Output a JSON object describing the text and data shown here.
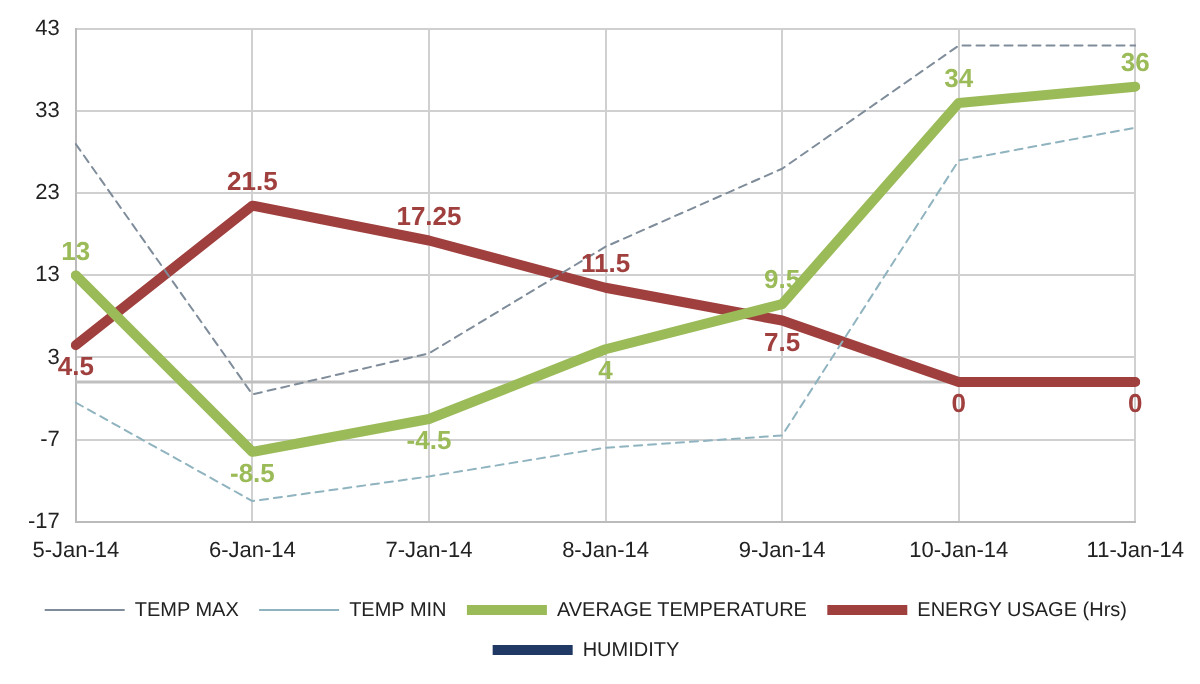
{
  "chart_data": {
    "type": "line",
    "categories": [
      "5-Jan-14",
      "6-Jan-14",
      "7-Jan-14",
      "8-Jan-14",
      "9-Jan-14",
      "10-Jan-14",
      "11-Jan-14"
    ],
    "ylim": [
      -17,
      43
    ],
    "yticks": [
      -17,
      -7,
      3,
      13,
      23,
      33,
      43
    ],
    "grid": true,
    "legend": "bottom",
    "marker": "none",
    "ref_lines": [
      {
        "axis": "y",
        "value": 0,
        "color": "#bfbfbf"
      }
    ],
    "series": [
      {
        "name": "TEMP MAX",
        "color": "#7f8c9a",
        "line_style": "dashed",
        "values": [
          29,
          -1.5,
          3.5,
          16.5,
          26,
          41,
          41
        ]
      },
      {
        "name": "TEMP MIN",
        "color": "#8fb3bf",
        "line_style": "dashed",
        "values": [
          -2.5,
          -14.5,
          -11.5,
          -8,
          -6.5,
          27,
          31
        ]
      },
      {
        "name": "AVERAGE TEMPERATURE",
        "color": "#9bbb59",
        "line_style": "solid",
        "values": [
          13,
          -8.5,
          -4.5,
          4,
          9.5,
          34,
          36
        ],
        "value_labels": [
          "13",
          "-8.5",
          "-4.5",
          "4",
          "9.5",
          "34",
          "36"
        ]
      },
      {
        "name": "ENERGY USAGE (Hrs)",
        "color": "#a0403e",
        "line_style": "solid",
        "values": [
          4.5,
          21.5,
          17.25,
          11.5,
          7.5,
          0,
          0
        ],
        "value_labels": [
          "4.5",
          "21.5",
          "17.25",
          "11.5",
          "7.5",
          "0",
          "0"
        ]
      },
      {
        "name": "HUMIDITY",
        "color": "#1f3864",
        "line_style": "solid",
        "values": [
          null,
          null,
          null,
          null,
          null,
          null,
          null
        ]
      }
    ]
  }
}
